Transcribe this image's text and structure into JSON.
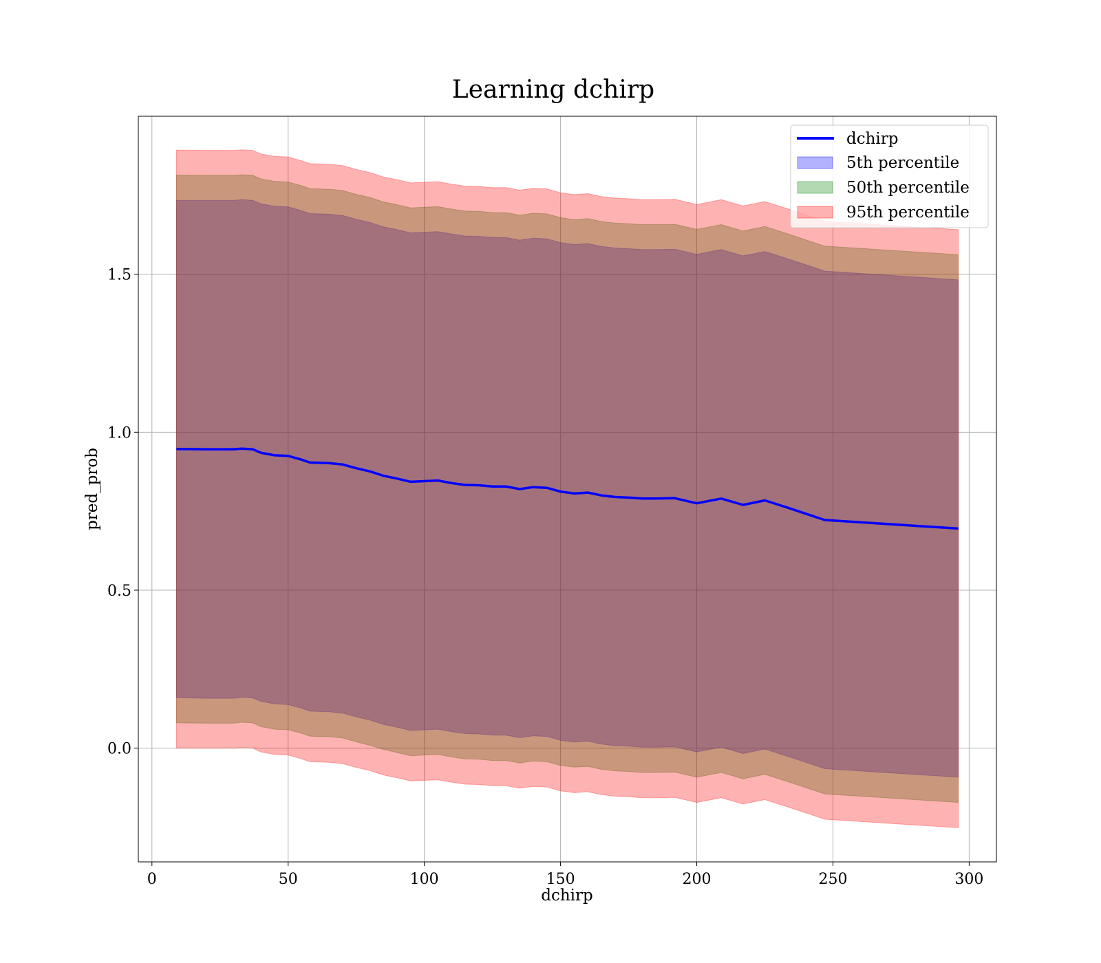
{
  "chart_data": {
    "type": "line",
    "title": "Learning dchirp",
    "xlabel": "dchirp",
    "ylabel": "pred_prob",
    "xlim": [
      -5,
      310
    ],
    "ylim": [
      -0.36,
      2.0
    ],
    "xticks": [
      0,
      50,
      100,
      150,
      200,
      250,
      300
    ],
    "yticks": [
      0.0,
      0.5,
      1.0,
      1.5
    ],
    "xtick_labels": [
      "0",
      "50",
      "100",
      "150",
      "200",
      "250",
      "300"
    ],
    "ytick_labels": [
      "0.0",
      "0.5",
      "1.0",
      "1.5"
    ],
    "grid": true,
    "legend_position": "top-right",
    "x": [
      9,
      20,
      30,
      33,
      37,
      40,
      45,
      50,
      55,
      58,
      65,
      70,
      75,
      80,
      85,
      90,
      95,
      100,
      105,
      110,
      115,
      120,
      125,
      130,
      135,
      140,
      145,
      150,
      155,
      160,
      165,
      170,
      175,
      180,
      185,
      192,
      200,
      209,
      217,
      225,
      233,
      240,
      247,
      296
    ],
    "series": [
      {
        "name": "dchirp",
        "kind": "line",
        "color": "#0000ff",
        "values": [
          0.947,
          0.946,
          0.946,
          0.948,
          0.946,
          0.935,
          0.927,
          0.925,
          0.913,
          0.904,
          0.902,
          0.898,
          0.886,
          0.876,
          0.862,
          0.853,
          0.843,
          0.845,
          0.847,
          0.839,
          0.833,
          0.832,
          0.828,
          0.828,
          0.82,
          0.826,
          0.824,
          0.812,
          0.806,
          0.809,
          0.8,
          0.795,
          0.793,
          0.79,
          0.79,
          0.791,
          0.775,
          0.79,
          0.77,
          0.784,
          0.762,
          0.742,
          0.722,
          0.695
        ]
      },
      {
        "name": "5th percentile",
        "kind": "band",
        "color": "#0000ff",
        "lower": [
          0.16,
          0.158,
          0.158,
          0.161,
          0.159,
          0.148,
          0.14,
          0.138,
          0.126,
          0.117,
          0.115,
          0.111,
          0.099,
          0.089,
          0.075,
          0.066,
          0.056,
          0.058,
          0.06,
          0.052,
          0.046,
          0.045,
          0.041,
          0.041,
          0.033,
          0.039,
          0.037,
          0.025,
          0.019,
          0.022,
          0.013,
          0.008,
          0.006,
          0.003,
          0.003,
          0.004,
          -0.012,
          0.003,
          -0.017,
          -0.003,
          -0.025,
          -0.045,
          -0.065,
          -0.092
        ],
        "upper": [
          1.734,
          1.734,
          1.734,
          1.736,
          1.734,
          1.723,
          1.715,
          1.713,
          1.701,
          1.692,
          1.69,
          1.686,
          1.674,
          1.664,
          1.65,
          1.641,
          1.631,
          1.633,
          1.635,
          1.627,
          1.621,
          1.62,
          1.616,
          1.616,
          1.608,
          1.614,
          1.612,
          1.6,
          1.594,
          1.597,
          1.588,
          1.583,
          1.581,
          1.578,
          1.578,
          1.579,
          1.563,
          1.578,
          1.558,
          1.572,
          1.55,
          1.53,
          1.51,
          1.482
        ]
      },
      {
        "name": "50th percentile",
        "kind": "band",
        "color": "#008000",
        "lower": [
          0.08,
          0.079,
          0.079,
          0.082,
          0.08,
          0.068,
          0.06,
          0.058,
          0.047,
          0.038,
          0.036,
          0.032,
          0.02,
          0.009,
          -0.004,
          -0.014,
          -0.024,
          -0.022,
          -0.02,
          -0.028,
          -0.034,
          -0.035,
          -0.039,
          -0.039,
          -0.047,
          -0.041,
          -0.043,
          -0.055,
          -0.06,
          -0.058,
          -0.067,
          -0.072,
          -0.074,
          -0.077,
          -0.077,
          -0.076,
          -0.092,
          -0.077,
          -0.097,
          -0.083,
          -0.105,
          -0.125,
          -0.145,
          -0.172
        ],
        "upper": [
          1.814,
          1.813,
          1.813,
          1.815,
          1.813,
          1.802,
          1.794,
          1.792,
          1.78,
          1.771,
          1.769,
          1.765,
          1.753,
          1.743,
          1.729,
          1.72,
          1.71,
          1.712,
          1.714,
          1.706,
          1.7,
          1.699,
          1.695,
          1.695,
          1.687,
          1.693,
          1.691,
          1.679,
          1.673,
          1.676,
          1.667,
          1.662,
          1.66,
          1.657,
          1.657,
          1.658,
          1.642,
          1.657,
          1.637,
          1.651,
          1.629,
          1.609,
          1.589,
          1.562
        ]
      },
      {
        "name": "95th percentile",
        "kind": "band",
        "color": "#ff0000",
        "lower": [
          0.0,
          0.0,
          0.0,
          0.002,
          0.0,
          -0.012,
          -0.02,
          -0.022,
          -0.034,
          -0.043,
          -0.045,
          -0.049,
          -0.061,
          -0.071,
          -0.085,
          -0.094,
          -0.104,
          -0.102,
          -0.1,
          -0.108,
          -0.114,
          -0.115,
          -0.119,
          -0.119,
          -0.127,
          -0.121,
          -0.123,
          -0.135,
          -0.141,
          -0.138,
          -0.147,
          -0.152,
          -0.154,
          -0.157,
          -0.157,
          -0.156,
          -0.172,
          -0.157,
          -0.177,
          -0.163,
          -0.185,
          -0.205,
          -0.225,
          -0.252
        ],
        "upper": [
          1.893,
          1.892,
          1.892,
          1.894,
          1.892,
          1.881,
          1.873,
          1.871,
          1.859,
          1.85,
          1.848,
          1.844,
          1.832,
          1.822,
          1.808,
          1.799,
          1.789,
          1.791,
          1.793,
          1.785,
          1.779,
          1.778,
          1.774,
          1.774,
          1.766,
          1.772,
          1.77,
          1.758,
          1.752,
          1.755,
          1.746,
          1.741,
          1.739,
          1.736,
          1.736,
          1.737,
          1.721,
          1.736,
          1.716,
          1.73,
          1.708,
          1.688,
          1.668,
          1.641
        ]
      }
    ]
  }
}
